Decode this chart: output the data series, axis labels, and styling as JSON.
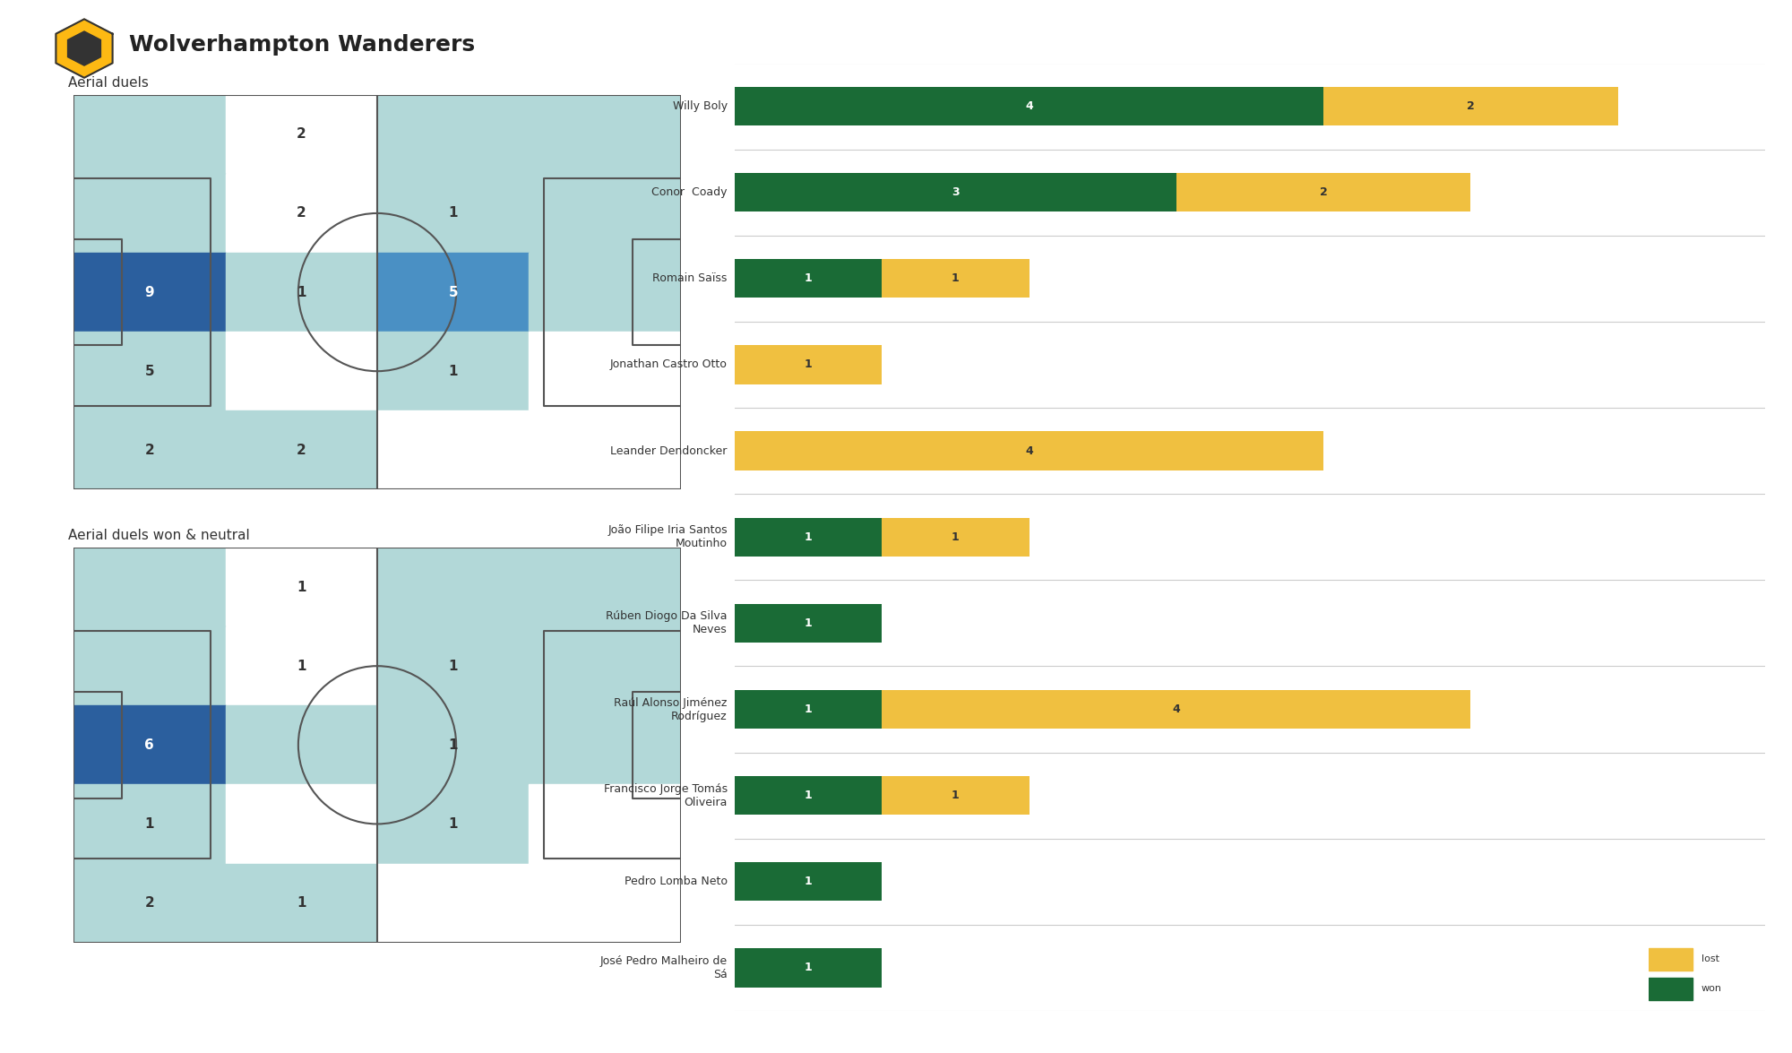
{
  "title": "Wolverhampton Wanderers",
  "subtitle1": "Aerial duels",
  "subtitle2": "Aerial duels won & neutral",
  "bar_players": [
    "Willy Boly",
    "Conor  Coady",
    "Romain Saïss",
    "Jonathan Castro Otto",
    "Leander Dendoncker",
    "João Filipe Iria Santos\nMoutinho",
    "Rúben Diogo Da Silva\nNeves",
    "Raúl Alonso Jiménez\nRodríguez",
    "Francisco Jorge Tomás\nOliveira",
    "Pedro Lomba Neto",
    "José Pedro Malheiro de\nSá"
  ],
  "won_values": [
    4,
    3,
    1,
    0,
    0,
    1,
    1,
    1,
    1,
    1,
    1
  ],
  "lost_values": [
    2,
    2,
    1,
    1,
    4,
    1,
    0,
    4,
    1,
    0,
    0
  ],
  "color_won": "#1a6b36",
  "color_lost": "#f0c040",
  "bg_color": "#ffffff",
  "pitch_line_color": "#555555",
  "heatmap_colors_top": [
    [
      "#b2d8d8",
      "#ffffff",
      "#b2d8d8",
      "#b2d8d8"
    ],
    [
      "#b2d8d8",
      "#ffffff",
      "#b2d8d8",
      "#b2d8d8"
    ],
    [
      "#2b5f9e",
      "#b2d8d8",
      "#4a90c4",
      "#b2d8d8"
    ],
    [
      "#b2d8d8",
      "#ffffff",
      "#b2d8d8",
      "#ffffff"
    ],
    [
      "#b2d8d8",
      "#b2d8d8",
      "#ffffff",
      "#ffffff"
    ]
  ],
  "heatmap_values_top": [
    [
      null,
      2,
      null,
      null
    ],
    [
      null,
      2,
      1,
      null
    ],
    [
      9,
      1,
      5,
      null
    ],
    [
      5,
      null,
      1,
      null
    ],
    [
      2,
      2,
      null,
      null
    ]
  ],
  "heatmap_colors_bot": [
    [
      "#b2d8d8",
      "#ffffff",
      "#b2d8d8",
      "#b2d8d8"
    ],
    [
      "#b2d8d8",
      "#ffffff",
      "#b2d8d8",
      "#b2d8d8"
    ],
    [
      "#2b5f9e",
      "#b2d8d8",
      "#b2d8d8",
      "#b2d8d8"
    ],
    [
      "#b2d8d8",
      "#ffffff",
      "#b2d8d8",
      "#ffffff"
    ],
    [
      "#b2d8d8",
      "#b2d8d8",
      "#ffffff",
      "#ffffff"
    ]
  ],
  "heatmap_values_bot": [
    [
      null,
      1,
      null,
      null
    ],
    [
      null,
      1,
      1,
      null
    ],
    [
      6,
      null,
      1,
      null
    ],
    [
      1,
      null,
      1,
      null
    ],
    [
      2,
      1,
      null,
      null
    ]
  ],
  "text_colors_top": [
    [
      "#333333",
      "#333333",
      "#333333",
      "#333333"
    ],
    [
      "#333333",
      "#333333",
      "#333333",
      "#333333"
    ],
    [
      "white",
      "#333333",
      "white",
      "#333333"
    ],
    [
      "#333333",
      "#333333",
      "#333333",
      "#333333"
    ],
    [
      "#333333",
      "#333333",
      "#333333",
      "#333333"
    ]
  ],
  "text_colors_bot": [
    [
      "#333333",
      "#333333",
      "#333333",
      "#333333"
    ],
    [
      "#333333",
      "#333333",
      "#333333",
      "#333333"
    ],
    [
      "white",
      "#333333",
      "#333333",
      "#333333"
    ],
    [
      "#333333",
      "#333333",
      "#333333",
      "#333333"
    ],
    [
      "#333333",
      "#333333",
      "#333333",
      "#333333"
    ]
  ]
}
